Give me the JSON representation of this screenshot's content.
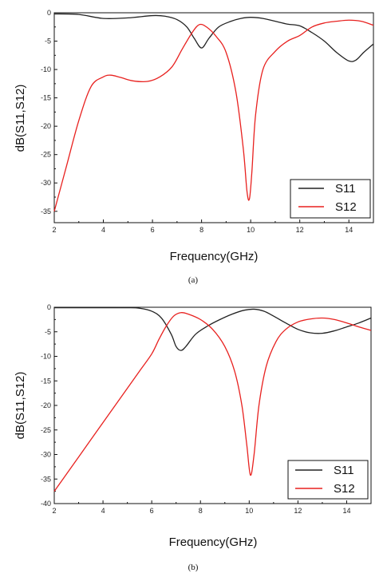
{
  "chart_data": [
    {
      "type": "line",
      "caption": "(a)",
      "xlabel": "Frequency(GHz)",
      "ylabel": "dB(S11,S12)",
      "xlim": [
        2,
        15
      ],
      "ylim": [
        -37,
        0
      ],
      "xticks": [
        "2",
        "4",
        "6",
        "8",
        "10",
        "12",
        "14"
      ],
      "yticks": [
        "0",
        "-5",
        "-10",
        "-15",
        "-20",
        "-25",
        "-30",
        "-35"
      ],
      "legend_position": "bottom-right",
      "series": [
        {
          "name": "S11",
          "color": "#222222",
          "x": [
            2,
            3,
            4,
            5,
            6,
            6.5,
            7,
            7.4,
            7.7,
            8.0,
            8.3,
            8.7,
            9.2,
            9.6,
            10.0,
            10.5,
            11,
            11.5,
            12,
            12.5,
            13,
            13.5,
            14,
            14.3,
            14.6,
            15
          ],
          "y": [
            -0.2,
            -0.3,
            -1.0,
            -0.9,
            -0.5,
            -0.6,
            -1.2,
            -2.5,
            -4.5,
            -6.2,
            -4.5,
            -2.5,
            -1.5,
            -1.0,
            -0.8,
            -1.0,
            -1.5,
            -2.0,
            -2.3,
            -3.5,
            -5.0,
            -7.0,
            -8.5,
            -8.3,
            -7.0,
            -5.5
          ]
        },
        {
          "name": "S12",
          "color": "#e8211f",
          "x": [
            2,
            2.5,
            3,
            3.5,
            4,
            4.3,
            4.7,
            5.2,
            5.8,
            6.3,
            6.8,
            7.2,
            7.6,
            7.9,
            8.2,
            8.6,
            9.0,
            9.4,
            9.7,
            9.85,
            9.95,
            10.05,
            10.2,
            10.5,
            11,
            11.5,
            12,
            12.5,
            13,
            13.5,
            14,
            14.5,
            15
          ],
          "y": [
            -35,
            -27,
            -19,
            -13,
            -11.3,
            -11.0,
            -11.4,
            -12.0,
            -12.1,
            -11.3,
            -9.5,
            -6.5,
            -3.6,
            -2.1,
            -2.5,
            -4.2,
            -7.0,
            -14.0,
            -24.0,
            -31.5,
            -32.8,
            -28.0,
            -18.0,
            -10.0,
            -6.8,
            -5.0,
            -4.0,
            -2.5,
            -1.8,
            -1.5,
            -1.3,
            -1.5,
            -2.2
          ]
        }
      ]
    },
    {
      "type": "line",
      "caption": "(b)",
      "xlabel": "Frequency(GHz)",
      "ylabel": "dB(S11,S12)",
      "xlim": [
        2,
        15
      ],
      "ylim": [
        -40,
        0
      ],
      "xticks": [
        "2",
        "4",
        "6",
        "8",
        "10",
        "12",
        "14"
      ],
      "yticks": [
        "0",
        "-5",
        "-10",
        "-15",
        "-20",
        "-25",
        "-30",
        "-35",
        "-40"
      ],
      "legend_position": "bottom-right",
      "series": [
        {
          "name": "S11",
          "color": "#222222",
          "x": [
            2,
            3,
            4,
            5,
            5.5,
            6,
            6.4,
            6.8,
            7.0,
            7.2,
            7.4,
            7.8,
            8.3,
            8.8,
            9.3,
            9.8,
            10.2,
            10.6,
            11,
            11.5,
            12,
            12.5,
            13,
            13.5,
            14,
            14.5,
            15
          ],
          "y": [
            -0.1,
            -0.1,
            -0.1,
            -0.1,
            -0.2,
            -0.8,
            -2.2,
            -5.5,
            -8.0,
            -8.8,
            -8.0,
            -5.5,
            -3.8,
            -2.5,
            -1.4,
            -0.6,
            -0.4,
            -0.8,
            -1.8,
            -3.2,
            -4.5,
            -5.2,
            -5.3,
            -4.8,
            -4.0,
            -3.2,
            -2.2
          ]
        },
        {
          "name": "S12",
          "color": "#e8211f",
          "x": [
            2,
            2.5,
            3,
            3.5,
            4,
            4.5,
            5,
            5.5,
            6,
            6.3,
            6.6,
            6.9,
            7.2,
            7.5,
            8.0,
            8.5,
            9.0,
            9.4,
            9.7,
            9.9,
            10.05,
            10.2,
            10.4,
            10.7,
            11.1,
            11.5,
            12,
            12.5,
            13,
            13.5,
            14,
            14.5,
            15
          ],
          "y": [
            -37.5,
            -34,
            -30.5,
            -27,
            -23.5,
            -20,
            -16.5,
            -13,
            -9.5,
            -6.5,
            -3.8,
            -1.8,
            -1.1,
            -1.4,
            -2.5,
            -4.5,
            -8.0,
            -13.0,
            -20.0,
            -28.0,
            -34.2,
            -30.0,
            -20.0,
            -12.0,
            -7.0,
            -4.5,
            -3.0,
            -2.4,
            -2.2,
            -2.5,
            -3.2,
            -4.0,
            -4.7
          ]
        }
      ]
    }
  ]
}
